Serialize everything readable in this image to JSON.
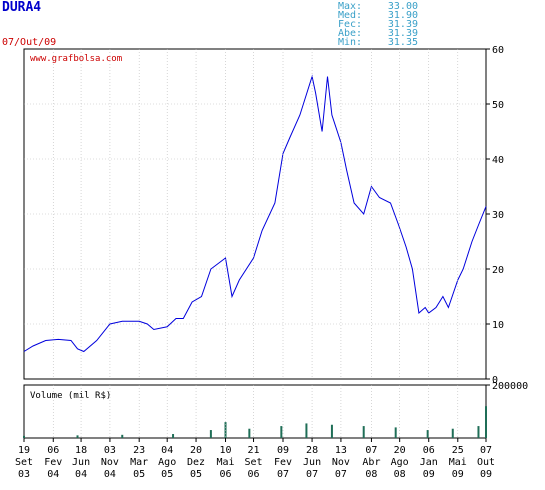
{
  "header": {
    "ticker": "DURA4",
    "date": "07/Out/09",
    "stats": [
      {
        "label": "Max:",
        "value": "33.00"
      },
      {
        "label": "Med:",
        "value": "31.90"
      },
      {
        "label": "Fec:",
        "value": "31.39"
      },
      {
        "label": "Abe:",
        "value": "31.39"
      },
      {
        "label": "Min:",
        "value": "31.35"
      }
    ]
  },
  "watermark": "www.grafbolsa.com",
  "volume_label": "Volume (mil R$)",
  "colors": {
    "price_line": "#0000dd",
    "volume_fill": "#1f6e57",
    "grid": "#bbbbbb",
    "ticker": "#0000cc",
    "date": "#cc0000",
    "stats": "#3aa0c8"
  },
  "chart_data": [
    {
      "type": "line",
      "series": [
        {
          "x": [
            "2003-09-19",
            "2003-11-01",
            "2004-01-01",
            "2004-03-01",
            "2004-05-01",
            "2004-06-01",
            "2004-07-01",
            "2004-09-01",
            "2004-11-03",
            "2005-01-01",
            "2005-03-23",
            "2005-05-01",
            "2005-06-01",
            "2005-08-04",
            "2005-09-15",
            "2005-10-20",
            "2005-12-01",
            "2006-01-15",
            "2006-03-01",
            "2006-05-10",
            "2006-06-10",
            "2006-07-15",
            "2006-09-21",
            "2006-11-01",
            "2007-01-01",
            "2007-02-09",
            "2007-03-15",
            "2007-05-01",
            "2007-06-28",
            "2007-07-15",
            "2007-08-15",
            "2007-09-10",
            "2007-10-01",
            "2007-11-13",
            "2007-12-10",
            "2008-01-15",
            "2008-03-01",
            "2008-04-07",
            "2008-05-15",
            "2008-07-07",
            "2008-08-15",
            "2008-09-20",
            "2008-10-20",
            "2008-11-20",
            "2008-12-20",
            "2009-01-06",
            "2009-02-10",
            "2009-03-15",
            "2009-04-10",
            "2009-05-25",
            "2009-06-20",
            "2009-08-01",
            "2009-09-01",
            "2009-10-07"
          ],
          "values": [
            5,
            6,
            7,
            7.2,
            7,
            5.5,
            5,
            7,
            10,
            10.5,
            10.5,
            10,
            9,
            9.5,
            11,
            11,
            14,
            15,
            20,
            22,
            15,
            18,
            22,
            27,
            32,
            41,
            44,
            48,
            55,
            52,
            45,
            55,
            48,
            43,
            38,
            32,
            30,
            35,
            33,
            32,
            28,
            24,
            20,
            12,
            13,
            12,
            13,
            15,
            13,
            18,
            20,
            25,
            28,
            31.39
          ]
        }
      ],
      "xlabel": "",
      "ylabel": "",
      "ylim": [
        0,
        60
      ],
      "yticks": [
        0,
        10,
        20,
        30,
        40,
        50,
        60
      ],
      "xticks": [
        {
          "date": "2003-09-19",
          "line1": "19",
          "line2": "Set",
          "line3": "03"
        },
        {
          "date": "2004-02-06",
          "line1": "06",
          "line2": "Fev",
          "line3": "04"
        },
        {
          "date": "2004-06-18",
          "line1": "18",
          "line2": "Jun",
          "line3": "04"
        },
        {
          "date": "2004-11-03",
          "line1": "03",
          "line2": "Nov",
          "line3": "04"
        },
        {
          "date": "2005-03-23",
          "line1": "23",
          "line2": "Mar",
          "line3": "05"
        },
        {
          "date": "2005-08-04",
          "line1": "04",
          "line2": "Ago",
          "line3": "05"
        },
        {
          "date": "2005-12-20",
          "line1": "20",
          "line2": "Dez",
          "line3": "05"
        },
        {
          "date": "2006-05-10",
          "line1": "10",
          "line2": "Mai",
          "line3": "06"
        },
        {
          "date": "2006-09-21",
          "line1": "21",
          "line2": "Set",
          "line3": "06"
        },
        {
          "date": "2007-02-09",
          "line1": "09",
          "line2": "Fev",
          "line3": "07"
        },
        {
          "date": "2007-06-28",
          "line1": "28",
          "line2": "Jun",
          "line3": "07"
        },
        {
          "date": "2007-11-13",
          "line1": "13",
          "line2": "Nov",
          "line3": "07"
        },
        {
          "date": "2008-04-07",
          "line1": "07",
          "line2": "Abr",
          "line3": "08"
        },
        {
          "date": "2008-08-20",
          "line1": "20",
          "line2": "Ago",
          "line3": "08"
        },
        {
          "date": "2009-01-06",
          "line1": "06",
          "line2": "Jan",
          "line3": "09"
        },
        {
          "date": "2009-05-25",
          "line1": "25",
          "line2": "Mai",
          "line3": "09"
        },
        {
          "date": "2009-10-07",
          "line1": "07",
          "line2": "Out",
          "line3": "09"
        }
      ],
      "grid": true
    },
    {
      "type": "bar",
      "series": [
        {
          "x": [
            "2003-09-19",
            "2004-06-01",
            "2005-01-01",
            "2005-09-01",
            "2006-03-01",
            "2006-05-10",
            "2006-09-01",
            "2007-02-01",
            "2007-06-01",
            "2007-10-01",
            "2008-03-01",
            "2008-08-01",
            "2009-01-01",
            "2009-05-01",
            "2009-09-01",
            "2009-10-07"
          ],
          "values": [
            8000,
            10000,
            12000,
            15000,
            30000,
            60000,
            35000,
            45000,
            55000,
            50000,
            45000,
            40000,
            30000,
            35000,
            45000,
            120000
          ]
        }
      ],
      "ylim": [
        0,
        200000
      ],
      "yticks": [
        200000
      ]
    }
  ]
}
